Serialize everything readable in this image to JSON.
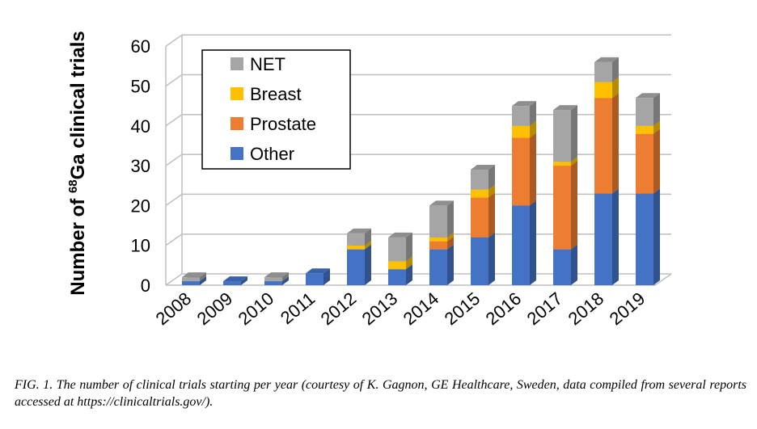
{
  "chart_data": {
    "type": "bar",
    "stacked": true,
    "three_d": true,
    "ylabel": {
      "prefix": "Number of ",
      "superscript": "68",
      "suffix": "Ga clinical trials"
    },
    "categories": [
      "2008",
      "2009",
      "2010",
      "2011",
      "2012",
      "2013",
      "2014",
      "2015",
      "2016",
      "2017",
      "2018",
      "2019"
    ],
    "series": [
      {
        "name": "Other",
        "color": "#4472c4",
        "values": [
          1,
          1,
          1,
          3,
          9,
          4,
          9,
          12,
          20,
          9,
          23,
          23
        ]
      },
      {
        "name": "Prostate",
        "color": "#ed7d31",
        "values": [
          0,
          0,
          0,
          0,
          0,
          0,
          2,
          10,
          17,
          21,
          24,
          15
        ]
      },
      {
        "name": "Breast",
        "color": "#ffc000",
        "values": [
          0,
          0,
          0,
          0,
          1,
          2,
          1,
          2,
          3,
          1,
          4,
          2
        ]
      },
      {
        "name": "NET",
        "color": "#a5a5a5",
        "values": [
          1,
          0,
          1,
          0,
          3,
          6,
          8,
          5,
          5,
          13,
          5,
          7
        ]
      }
    ],
    "legend_order": [
      "NET",
      "Breast",
      "Prostate",
      "Other"
    ],
    "legend_placement": "top-left",
    "ylim": [
      0,
      60
    ],
    "yticks": [
      0,
      10,
      20,
      30,
      40,
      50,
      60
    ],
    "grid": true
  },
  "caption": "FIG. 1. The number of clinical trials starting per year (courtesy of K. Gagnon, GE Healthcare, Sweden, data compiled from several reports accessed at https://clinicaltrials.gov/)."
}
